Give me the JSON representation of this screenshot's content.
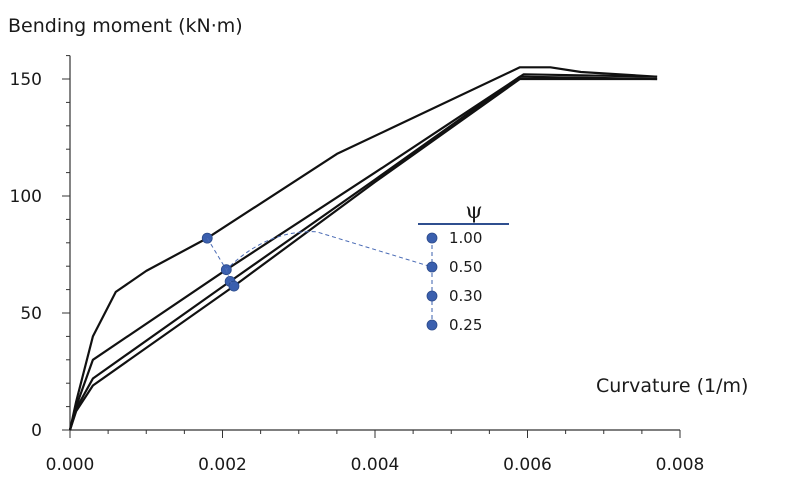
{
  "chart_data": {
    "type": "line",
    "title": "",
    "ylabel": "Bending moment (kN·m)",
    "xlabel": "Curvature (1/m)",
    "xlim": [
      0,
      0.008
    ],
    "ylim": [
      0,
      160
    ],
    "x_ticks": [
      0,
      0.002,
      0.004,
      0.006,
      0.008
    ],
    "x_tick_labels": [
      "0.000",
      "0.002",
      "0.004",
      "0.006",
      "0.008"
    ],
    "y_ticks": [
      0,
      50,
      100,
      150
    ],
    "y_tick_labels": [
      "0",
      "50",
      "100",
      "150"
    ],
    "grid": false,
    "line_color": "#111111",
    "marker_color": "#3a5fae",
    "series": [
      {
        "psi": "1.00",
        "x": [
          0,
          8e-05,
          0.0003,
          0.0006,
          0.001,
          0.0018,
          0.0035,
          0.0059,
          0.0063,
          0.0067,
          0.0077
        ],
        "y": [
          0,
          12,
          40,
          59,
          68,
          82,
          118,
          155,
          155,
          153,
          151
        ],
        "marker": [
          0.0018,
          82
        ]
      },
      {
        "psi": "0.50",
        "x": [
          0,
          8e-05,
          0.0003,
          0.00205,
          0.004,
          0.00595,
          0.0077
        ],
        "y": [
          0,
          10,
          30,
          68.5,
          110,
          152,
          151
        ],
        "marker": [
          0.00205,
          68.5
        ]
      },
      {
        "psi": "0.30",
        "x": [
          0,
          8e-05,
          0.0003,
          0.0021,
          0.004,
          0.0059,
          0.0077
        ],
        "y": [
          0,
          9,
          22,
          63.5,
          107,
          151,
          150
        ],
        "marker": [
          0.0021,
          63.5
        ]
      },
      {
        "psi": "0.25",
        "x": [
          0,
          8e-05,
          0.0003,
          0.00215,
          0.004,
          0.0059,
          0.0077
        ],
        "y": [
          0,
          8,
          19,
          61.5,
          106,
          150,
          150
        ],
        "marker": [
          0.00215,
          61.5
        ]
      }
    ],
    "legend": {
      "title": "ψ",
      "entries": [
        "1.00",
        "0.50",
        "0.30",
        "0.25"
      ],
      "placement": "center-right"
    }
  }
}
